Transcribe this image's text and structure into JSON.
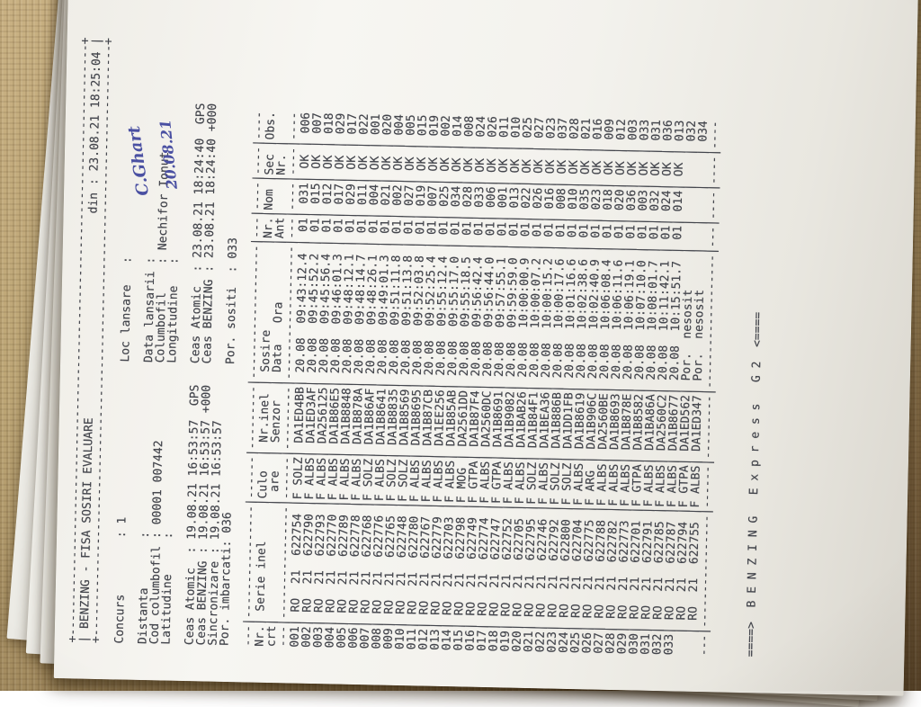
{
  "document": {
    "header": {
      "title": "BENZING - FISA SOSIRI EVALUARE",
      "din_label": "din :",
      "din_value": "23.08.21 18:25:04"
    },
    "info": {
      "concurs_label": "Concurs",
      "concurs_value": "1",
      "loc_lansare_label": "Loc lansare",
      "loc_lansare_value": "",
      "distanta_label": "Distanta",
      "distanta_value": "",
      "cod_columbofil_label": "Cod columbofil",
      "cod_columbofil_value": "00001 007442",
      "data_lansarii_label": "Data lansarii",
      "data_lansarii_value": "",
      "columbofil_label": "Columbofil",
      "columbofil_value": "Nechifor Ionut",
      "latitudine_label": "Latitudine",
      "latitudine_value": "",
      "longitudine_label": "Longitudine",
      "longitudine_value": ""
    },
    "clocks": {
      "ceas_atomic_label": "Ceas Atomic",
      "ceas_atomic_1": "19.08.21 16:53:57",
      "ceas_atomic_1_suffix": "GPS",
      "ceas_atomic_2": "23.08.21 18:24:40",
      "ceas_atomic_2_suffix": "GPS",
      "ceas_benzing_label": "Ceas BENZING",
      "ceas_benzing_1": "19.08.21 16:53:57",
      "ceas_benzing_1_suffix": "+000",
      "ceas_benzing_2": "23.08.21 18:24:40",
      "ceas_benzing_2_suffix": "+000",
      "sincronizare_label": "Sincronizare",
      "sincronizare_value": "19.08.21 16:53:57",
      "por_imbarcati_label": "Por. imbarcati",
      "por_imbarcati_value": "036",
      "por_sositi_label": "Por. sositi",
      "por_sositi_value": "033"
    },
    "table": {
      "columns": [
        {
          "l1": "Nr.",
          "l2": "crt"
        },
        {
          "l1": "Serie inel",
          "l2": ""
        },
        {
          "l1": "Culo",
          "l2": "are"
        },
        {
          "l1": "Nr.inel",
          "l2": "Senzor"
        },
        {
          "l1": "Sosire",
          "l2": "Data   Ora"
        },
        {
          "l1": "Nr.",
          "l2": "Ant"
        },
        {
          "l1": "Nom",
          "l2": ""
        },
        {
          "l1": "Sec",
          "l2": "Nr."
        },
        {
          "l1": "Obs.",
          "l2": ""
        }
      ],
      "rows": [
        {
          "crt": "001",
          "tara": "RO",
          "an": "21",
          "serie": "622754",
          "sex": "F",
          "culoare": "SOLZ",
          "senzor": "DA1ED4BB",
          "data": "20.08",
          "ora": "09:43:12.4",
          "ant": "01",
          "nom": "031",
          "sec": "OK",
          "obs": "006"
        },
        {
          "crt": "002",
          "tara": "RO",
          "an": "21",
          "serie": "622790",
          "sex": "F",
          "culoare": "ALBS",
          "senzor": "DA1ED3AF",
          "data": "20.08",
          "ora": "09:45:52.2",
          "ant": "01",
          "nom": "015",
          "sec": "OK",
          "obs": "007"
        },
        {
          "crt": "003",
          "tara": "RO",
          "an": "21",
          "serie": "622793",
          "sex": "F",
          "culoare": "ALBS",
          "senzor": "DA256125",
          "data": "20.08",
          "ora": "09:45:56.4",
          "ant": "01",
          "nom": "012",
          "sec": "OK",
          "obs": "018"
        },
        {
          "crt": "004",
          "tara": "RO",
          "an": "21",
          "serie": "622770",
          "sex": "F",
          "culoare": "ALBS",
          "senzor": "DA1B86E5",
          "data": "20.08",
          "ora": "09:46:01.3",
          "ant": "01",
          "nom": "017",
          "sec": "OK",
          "obs": "029"
        },
        {
          "crt": "005",
          "tara": "RO",
          "an": "21",
          "serie": "622789",
          "sex": "F",
          "culoare": "ALBS",
          "senzor": "DA1B8848",
          "data": "20.08",
          "ora": "09:48:12.1",
          "ant": "01",
          "nom": "029",
          "sec": "OK",
          "obs": "017"
        },
        {
          "crt": "006",
          "tara": "RO",
          "an": "21",
          "serie": "622778",
          "sex": "F",
          "culoare": "ALBS",
          "senzor": "DA1B878A",
          "data": "20.08",
          "ora": "09:48:14.7",
          "ant": "01",
          "nom": "011",
          "sec": "OK",
          "obs": "022"
        },
        {
          "crt": "007",
          "tara": "RO",
          "an": "21",
          "serie": "622768",
          "sex": "F",
          "culoare": "SOLZ",
          "senzor": "DA1B86AF",
          "data": "20.08",
          "ora": "09:48:26.1",
          "ant": "01",
          "nom": "004",
          "sec": "OK",
          "obs": "001"
        },
        {
          "crt": "008",
          "tara": "RO",
          "an": "21",
          "serie": "622776",
          "sex": "F",
          "culoare": "ALBS",
          "senzor": "DA1B8641",
          "data": "20.08",
          "ora": "09:49:01.3",
          "ant": "01",
          "nom": "021",
          "sec": "OK",
          "obs": "020"
        },
        {
          "crt": "009",
          "tara": "RO",
          "an": "21",
          "serie": "622765",
          "sex": "F",
          "culoare": "SOLZ",
          "senzor": "DA1B8835",
          "data": "20.08",
          "ora": "09:51:11.8",
          "ant": "01",
          "nom": "002",
          "sec": "OK",
          "obs": "004"
        },
        {
          "crt": "010",
          "tara": "RO",
          "an": "21",
          "serie": "622748",
          "sex": "F",
          "culoare": "SOLZ",
          "senzor": "DA1B8569",
          "data": "20.08",
          "ora": "09:51:13.8",
          "ant": "01",
          "nom": "027",
          "sec": "OK",
          "obs": "005"
        },
        {
          "crt": "011",
          "tara": "RO",
          "an": "21",
          "serie": "622780",
          "sex": "F",
          "culoare": "ALBS",
          "senzor": "DA1B8695",
          "data": "20.08",
          "ora": "09:52:03.8",
          "ant": "01",
          "nom": "019",
          "sec": "OK",
          "obs": "015"
        },
        {
          "crt": "012",
          "tara": "RO",
          "an": "21",
          "serie": "622767",
          "sex": "F",
          "culoare": "ALBS",
          "senzor": "DA1B87CB",
          "data": "20.08",
          "ora": "09:52:25.4",
          "ant": "01",
          "nom": "007",
          "sec": "OK",
          "obs": "019"
        },
        {
          "crt": "013",
          "tara": "RO",
          "an": "21",
          "serie": "622779",
          "sex": "F",
          "culoare": "ALBS",
          "senzor": "DA1EE256",
          "data": "20.08",
          "ora": "09:55:12.4",
          "ant": "01",
          "nom": "025",
          "sec": "OK",
          "obs": "002"
        },
        {
          "crt": "014",
          "tara": "RO",
          "an": "21",
          "serie": "622703",
          "sex": "F",
          "culoare": "ALBS",
          "senzor": "DA1B85AB",
          "data": "20.08",
          "ora": "09:55:17.0",
          "ant": "01",
          "nom": "034",
          "sec": "OK",
          "obs": "014"
        },
        {
          "crt": "015",
          "tara": "RO",
          "an": "21",
          "serie": "622798",
          "sex": "F",
          "culoare": "MOG",
          "senzor": "DA2561DD",
          "data": "20.08",
          "ora": "09:55:18.5",
          "ant": "01",
          "nom": "028",
          "sec": "OK",
          "obs": "008"
        },
        {
          "crt": "016",
          "tara": "RO",
          "an": "21",
          "serie": "622749",
          "sex": "F",
          "culoare": "GTPA",
          "senzor": "DA1B87F4",
          "data": "20.08",
          "ora": "09:56:42.4",
          "ant": "01",
          "nom": "033",
          "sec": "OK",
          "obs": "024"
        },
        {
          "crt": "017",
          "tara": "RO",
          "an": "21",
          "serie": "622774",
          "sex": "F",
          "culoare": "ALBS",
          "senzor": "DA2560DC",
          "data": "20.08",
          "ora": "09:56:44.0",
          "ant": "01",
          "nom": "006",
          "sec": "OK",
          "obs": "026"
        },
        {
          "crt": "018",
          "tara": "RO",
          "an": "21",
          "serie": "622747",
          "sex": "F",
          "culoare": "GTPA",
          "senzor": "DA1B8691",
          "data": "20.08",
          "ora": "09:57:55.1",
          "ant": "01",
          "nom": "001",
          "sec": "OK",
          "obs": "011"
        },
        {
          "crt": "019",
          "tara": "RO",
          "an": "21",
          "serie": "622752",
          "sex": "F",
          "culoare": "ALBS",
          "senzor": "DA1B9082",
          "data": "20.08",
          "ora": "09:59:59.0",
          "ant": "01",
          "nom": "013",
          "sec": "OK",
          "obs": "010"
        },
        {
          "crt": "020",
          "tara": "RO",
          "an": "21",
          "serie": "622705",
          "sex": "F",
          "culoare": "ALBS",
          "senzor": "DA1BAB26",
          "data": "20.08",
          "ora": "10:00:00.9",
          "ant": "01",
          "nom": "022",
          "sec": "OK",
          "obs": "025"
        },
        {
          "crt": "021",
          "tara": "RO",
          "an": "21",
          "serie": "622795",
          "sex": "F",
          "culoare": "SOLZ",
          "senzor": "DA1B84F1",
          "data": "20.08",
          "ora": "10:00:07.2",
          "ant": "01",
          "nom": "026",
          "sec": "OK",
          "obs": "027"
        },
        {
          "crt": "022",
          "tara": "RO",
          "an": "21",
          "serie": "622746",
          "sex": "F",
          "culoare": "ALBS",
          "senzor": "DA1BEA36",
          "data": "20.08",
          "ora": "10:00:15.2",
          "ant": "01",
          "nom": "016",
          "sec": "OK",
          "obs": "023"
        },
        {
          "crt": "023",
          "tara": "RO",
          "an": "21",
          "serie": "622792",
          "sex": "F",
          "culoare": "SOLZ",
          "senzor": "DA1B886B",
          "data": "20.08",
          "ora": "10:00:17.6",
          "ant": "01",
          "nom": "008",
          "sec": "OK",
          "obs": "037"
        },
        {
          "crt": "024",
          "tara": "RO",
          "an": "21",
          "serie": "622800",
          "sex": "F",
          "culoare": "SOLZ",
          "senzor": "DA1DD1FB",
          "data": "20.08",
          "ora": "10:01:16.6",
          "ant": "01",
          "nom": "010",
          "sec": "OK",
          "obs": "028"
        },
        {
          "crt": "025",
          "tara": "RO",
          "an": "21",
          "serie": "622704",
          "sex": "F",
          "culoare": "ALBS",
          "senzor": "DA1B8619",
          "data": "20.08",
          "ora": "10:02:38.6",
          "ant": "01",
          "nom": "035",
          "sec": "OK",
          "obs": "021"
        },
        {
          "crt": "026",
          "tara": "RO",
          "an": "21",
          "serie": "622775",
          "sex": "F",
          "culoare": "ARG",
          "senzor": "DA1B906C",
          "data": "20.08",
          "ora": "10:02:40.9",
          "ant": "01",
          "nom": "023",
          "sec": "OK",
          "obs": "016"
        },
        {
          "crt": "027",
          "tara": "RO",
          "an": "21",
          "serie": "622788",
          "sex": "F",
          "culoare": "ALBS",
          "senzor": "DA2560BE",
          "data": "20.08",
          "ora": "10:06:08.4",
          "ant": "01",
          "nom": "018",
          "sec": "OK",
          "obs": "009"
        },
        {
          "crt": "028",
          "tara": "RO",
          "an": "21",
          "serie": "622782",
          "sex": "F",
          "culoare": "ALBS",
          "senzor": "DA1B8693",
          "data": "20.08",
          "ora": "10:06:11.6",
          "ant": "01",
          "nom": "020",
          "sec": "OK",
          "obs": "012"
        },
        {
          "crt": "029",
          "tara": "RO",
          "an": "21",
          "serie": "622773",
          "sex": "F",
          "culoare": "ALBS",
          "senzor": "DA1B878E",
          "data": "20.08",
          "ora": "10:06:19.1",
          "ant": "01",
          "nom": "036",
          "sec": "OK",
          "obs": "003"
        },
        {
          "crt": "030",
          "tara": "RO",
          "an": "21",
          "serie": "622701",
          "sex": "F",
          "culoare": "GTPA",
          "senzor": "DA1B8582",
          "data": "20.08",
          "ora": "10:07:10.0",
          "ant": "01",
          "nom": "003",
          "sec": "OK",
          "obs": "033"
        },
        {
          "crt": "031",
          "tara": "RO",
          "an": "21",
          "serie": "622791",
          "sex": "F",
          "culoare": "ALBS",
          "senzor": "DA1BA86A",
          "data": "20.08",
          "ora": "10:08:01.7",
          "ant": "01",
          "nom": "032",
          "sec": "OK",
          "obs": "031"
        },
        {
          "crt": "032",
          "tara": "RO",
          "an": "21",
          "serie": "622785",
          "sex": "F",
          "culoare": "ALBS",
          "senzor": "DA2560C2",
          "data": "20.08",
          "ora": "10:11:42.1",
          "ant": "01",
          "nom": "024",
          "sec": "OK",
          "obs": "036"
        },
        {
          "crt": "033",
          "tara": "RO",
          "an": "21",
          "serie": "622787",
          "sex": "F",
          "culoare": "ALBS",
          "senzor": "DA1B8677",
          "data": "20.08",
          "ora": "10:15:51.7",
          "ant": "01",
          "nom": "014",
          "sec": "OK",
          "obs": "013"
        }
      ],
      "unarrived_rows": [
        {
          "crt": "",
          "tara": "RO",
          "an": "21",
          "serie": "622794",
          "sex": "F",
          "culoare": "GTPA",
          "senzor": "DA1ED562",
          "status": "Por.  nesosit",
          "obs": "032"
        },
        {
          "crt": "",
          "tara": "RO",
          "an": "21",
          "serie": "622755",
          "sex": "F",
          "culoare": "ALBS",
          "senzor": "DA1ED347",
          "status": "Por.  nesosit",
          "obs": "034"
        }
      ]
    },
    "footer": "====>  B E N Z I N G   E x p r e s s   G 2  <===="
  },
  "handwriting": {
    "line1": "C.Ghart",
    "line2": "20.08.21"
  },
  "colors": {
    "ink": "#43454c",
    "paper": "#f4f3ee",
    "handwriting_ink": "#4a50a2",
    "table_wood": "#b09468"
  }
}
